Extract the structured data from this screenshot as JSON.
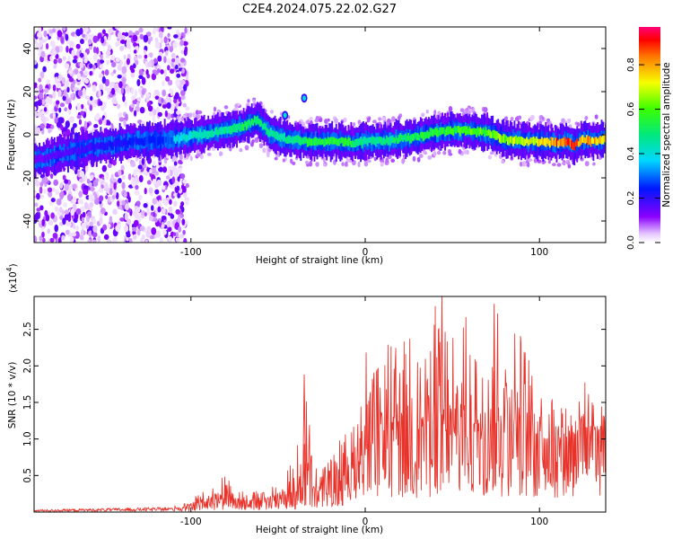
{
  "figure_title": "C2E4.2024.075.22.02.G27",
  "colorbar": {
    "label": "Normalized spectral amplitude",
    "ticks": [
      "0.0",
      "0.2",
      "0.4",
      "0.6",
      "0.8"
    ],
    "tick_values": [
      0.0,
      0.2,
      0.4,
      0.6,
      0.8
    ],
    "range": [
      0,
      0.97
    ]
  },
  "chart_data": [
    {
      "type": "heatmap",
      "title": "",
      "xlabel": "Height of straight line (km)",
      "ylabel": "Frequency (Hz)",
      "xlim": [
        -190,
        138
      ],
      "ylim": [
        -50,
        50
      ],
      "xticks": [
        -100,
        0,
        100
      ],
      "yticks": [
        -40,
        -20,
        0,
        20,
        40
      ],
      "noise_region_x": [
        -190,
        -110
      ],
      "ridge": {
        "x": [
          -190,
          -170,
          -150,
          -130,
          -110,
          -95,
          -80,
          -70,
          -62,
          -55,
          -45,
          -35,
          -25,
          -15,
          -5,
          0,
          10,
          20,
          30,
          40,
          50,
          60,
          70,
          80,
          90,
          100,
          110,
          115,
          120,
          125,
          130,
          138
        ],
        "freq": [
          -12,
          -8,
          -5,
          -3,
          -2,
          0,
          2,
          4,
          7,
          1,
          -2,
          -3,
          -3,
          -3,
          -4,
          -3,
          -3,
          -2,
          -1,
          1,
          2,
          2,
          1,
          -2,
          -3,
          -3,
          -4,
          -3,
          -5,
          -2,
          -3,
          -2
        ],
        "amplitude": [
          0.2,
          0.25,
          0.3,
          0.35,
          0.4,
          0.45,
          0.5,
          0.55,
          0.55,
          0.5,
          0.5,
          0.55,
          0.6,
          0.6,
          0.55,
          0.5,
          0.5,
          0.55,
          0.6,
          0.6,
          0.6,
          0.65,
          0.65,
          0.7,
          0.75,
          0.8,
          0.9,
          0.95,
          0.9,
          0.85,
          0.85,
          0.8
        ]
      },
      "blobs": [
        {
          "x": -35,
          "freq": 17
        },
        {
          "x": -46,
          "freq": 9
        }
      ]
    },
    {
      "type": "line",
      "title": "",
      "xlabel": "Height of straight line (km)",
      "ylabel": "SNR (10 * v/v)",
      "scale_label": "(x10",
      "scale_exponent": "4",
      "xlim": [
        -190,
        138
      ],
      "ylim": [
        0,
        2.95
      ],
      "xticks": [
        -100,
        0,
        100
      ],
      "yticks": [
        0.5,
        1.0,
        1.5,
        2.0,
        2.5
      ],
      "color": "#e8332b",
      "series": [
        {
          "x": [
            -190,
            -150,
            -110,
            -100,
            -95,
            -90,
            -85,
            -80,
            -75,
            -70,
            -60,
            -50,
            -40,
            -33,
            -30,
            -25,
            -20,
            -15,
            -10,
            -5,
            0,
            5,
            10,
            15,
            20,
            25,
            30,
            35,
            40,
            45,
            50,
            55,
            60,
            65,
            70,
            75,
            80,
            85,
            90,
            95,
            100,
            105,
            110,
            115,
            120,
            125,
            130,
            135,
            138
          ],
          "base": [
            0.02,
            0.03,
            0.04,
            0.06,
            0.1,
            0.13,
            0.15,
            0.17,
            0.15,
            0.13,
            0.12,
            0.15,
            0.2,
            0.25,
            0.25,
            0.3,
            0.35,
            0.4,
            0.5,
            0.6,
            0.7,
            0.8,
            0.85,
            0.85,
            0.9,
            0.9,
            0.95,
            0.95,
            1.0,
            1.0,
            1.0,
            1.0,
            1.0,
            1.0,
            1.0,
            1.05,
            1.05,
            1.0,
            1.0,
            1.0,
            0.95,
            0.95,
            0.95,
            0.95,
            1.0,
            1.0,
            1.05,
            1.1,
            1.15
          ],
          "peak": [
            0.04,
            0.07,
            0.08,
            0.15,
            0.28,
            0.3,
            0.4,
            0.52,
            0.35,
            0.3,
            0.3,
            0.4,
            0.75,
            1.88,
            0.5,
            0.75,
            0.75,
            1.0,
            1.1,
            1.55,
            2.25,
            2.0,
            2.1,
            2.6,
            2.2,
            2.5,
            2.55,
            2.2,
            2.95,
            2.6,
            2.35,
            2.9,
            2.5,
            2.2,
            2.1,
            2.85,
            2.8,
            2.6,
            2.4,
            2.05,
            1.8,
            1.7,
            1.55,
            1.5,
            1.55,
            1.85,
            1.5,
            1.6,
            1.55
          ]
        }
      ],
      "markers": [
        {
          "x": -35,
          "y": 1.88
        },
        {
          "x": 44,
          "y": 2.95
        },
        {
          "x": 74,
          "y": 2.85
        }
      ]
    }
  ]
}
